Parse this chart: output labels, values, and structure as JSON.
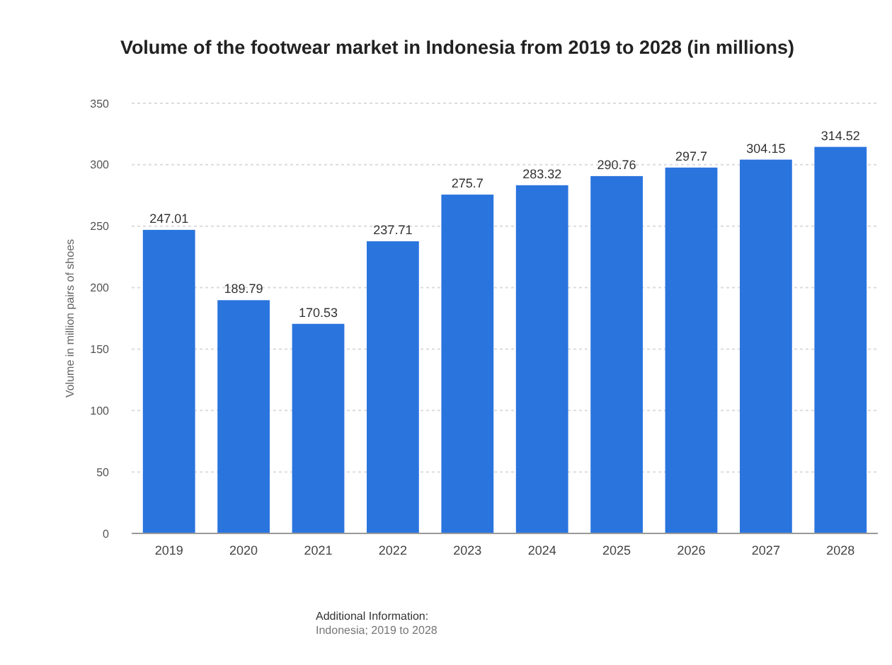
{
  "chart_data": {
    "type": "bar",
    "title": "Volume of the footwear market in Indonesia from 2019 to 2028 (in millions)",
    "ylabel": "Volume in million pairs of shoes",
    "categories": [
      "2019",
      "2020",
      "2021",
      "2022",
      "2023",
      "2024",
      "2025",
      "2026",
      "2027",
      "2028"
    ],
    "values": [
      247.01,
      189.79,
      170.53,
      237.71,
      275.7,
      283.32,
      290.76,
      297.7,
      304.15,
      314.52
    ],
    "value_labels": [
      "247.01",
      "189.79",
      "170.53",
      "237.71",
      "275.7",
      "283.32",
      "290.76",
      "297.7",
      "304.15",
      "314.52"
    ],
    "color": "#2a74de",
    "ylim": [
      0,
      350
    ],
    "yticks": [
      0,
      50,
      100,
      150,
      200,
      250,
      300,
      350
    ],
    "grid": "y",
    "annotations": [
      "Additional Information:",
      "Indonesia; 2019 to 2028"
    ]
  }
}
